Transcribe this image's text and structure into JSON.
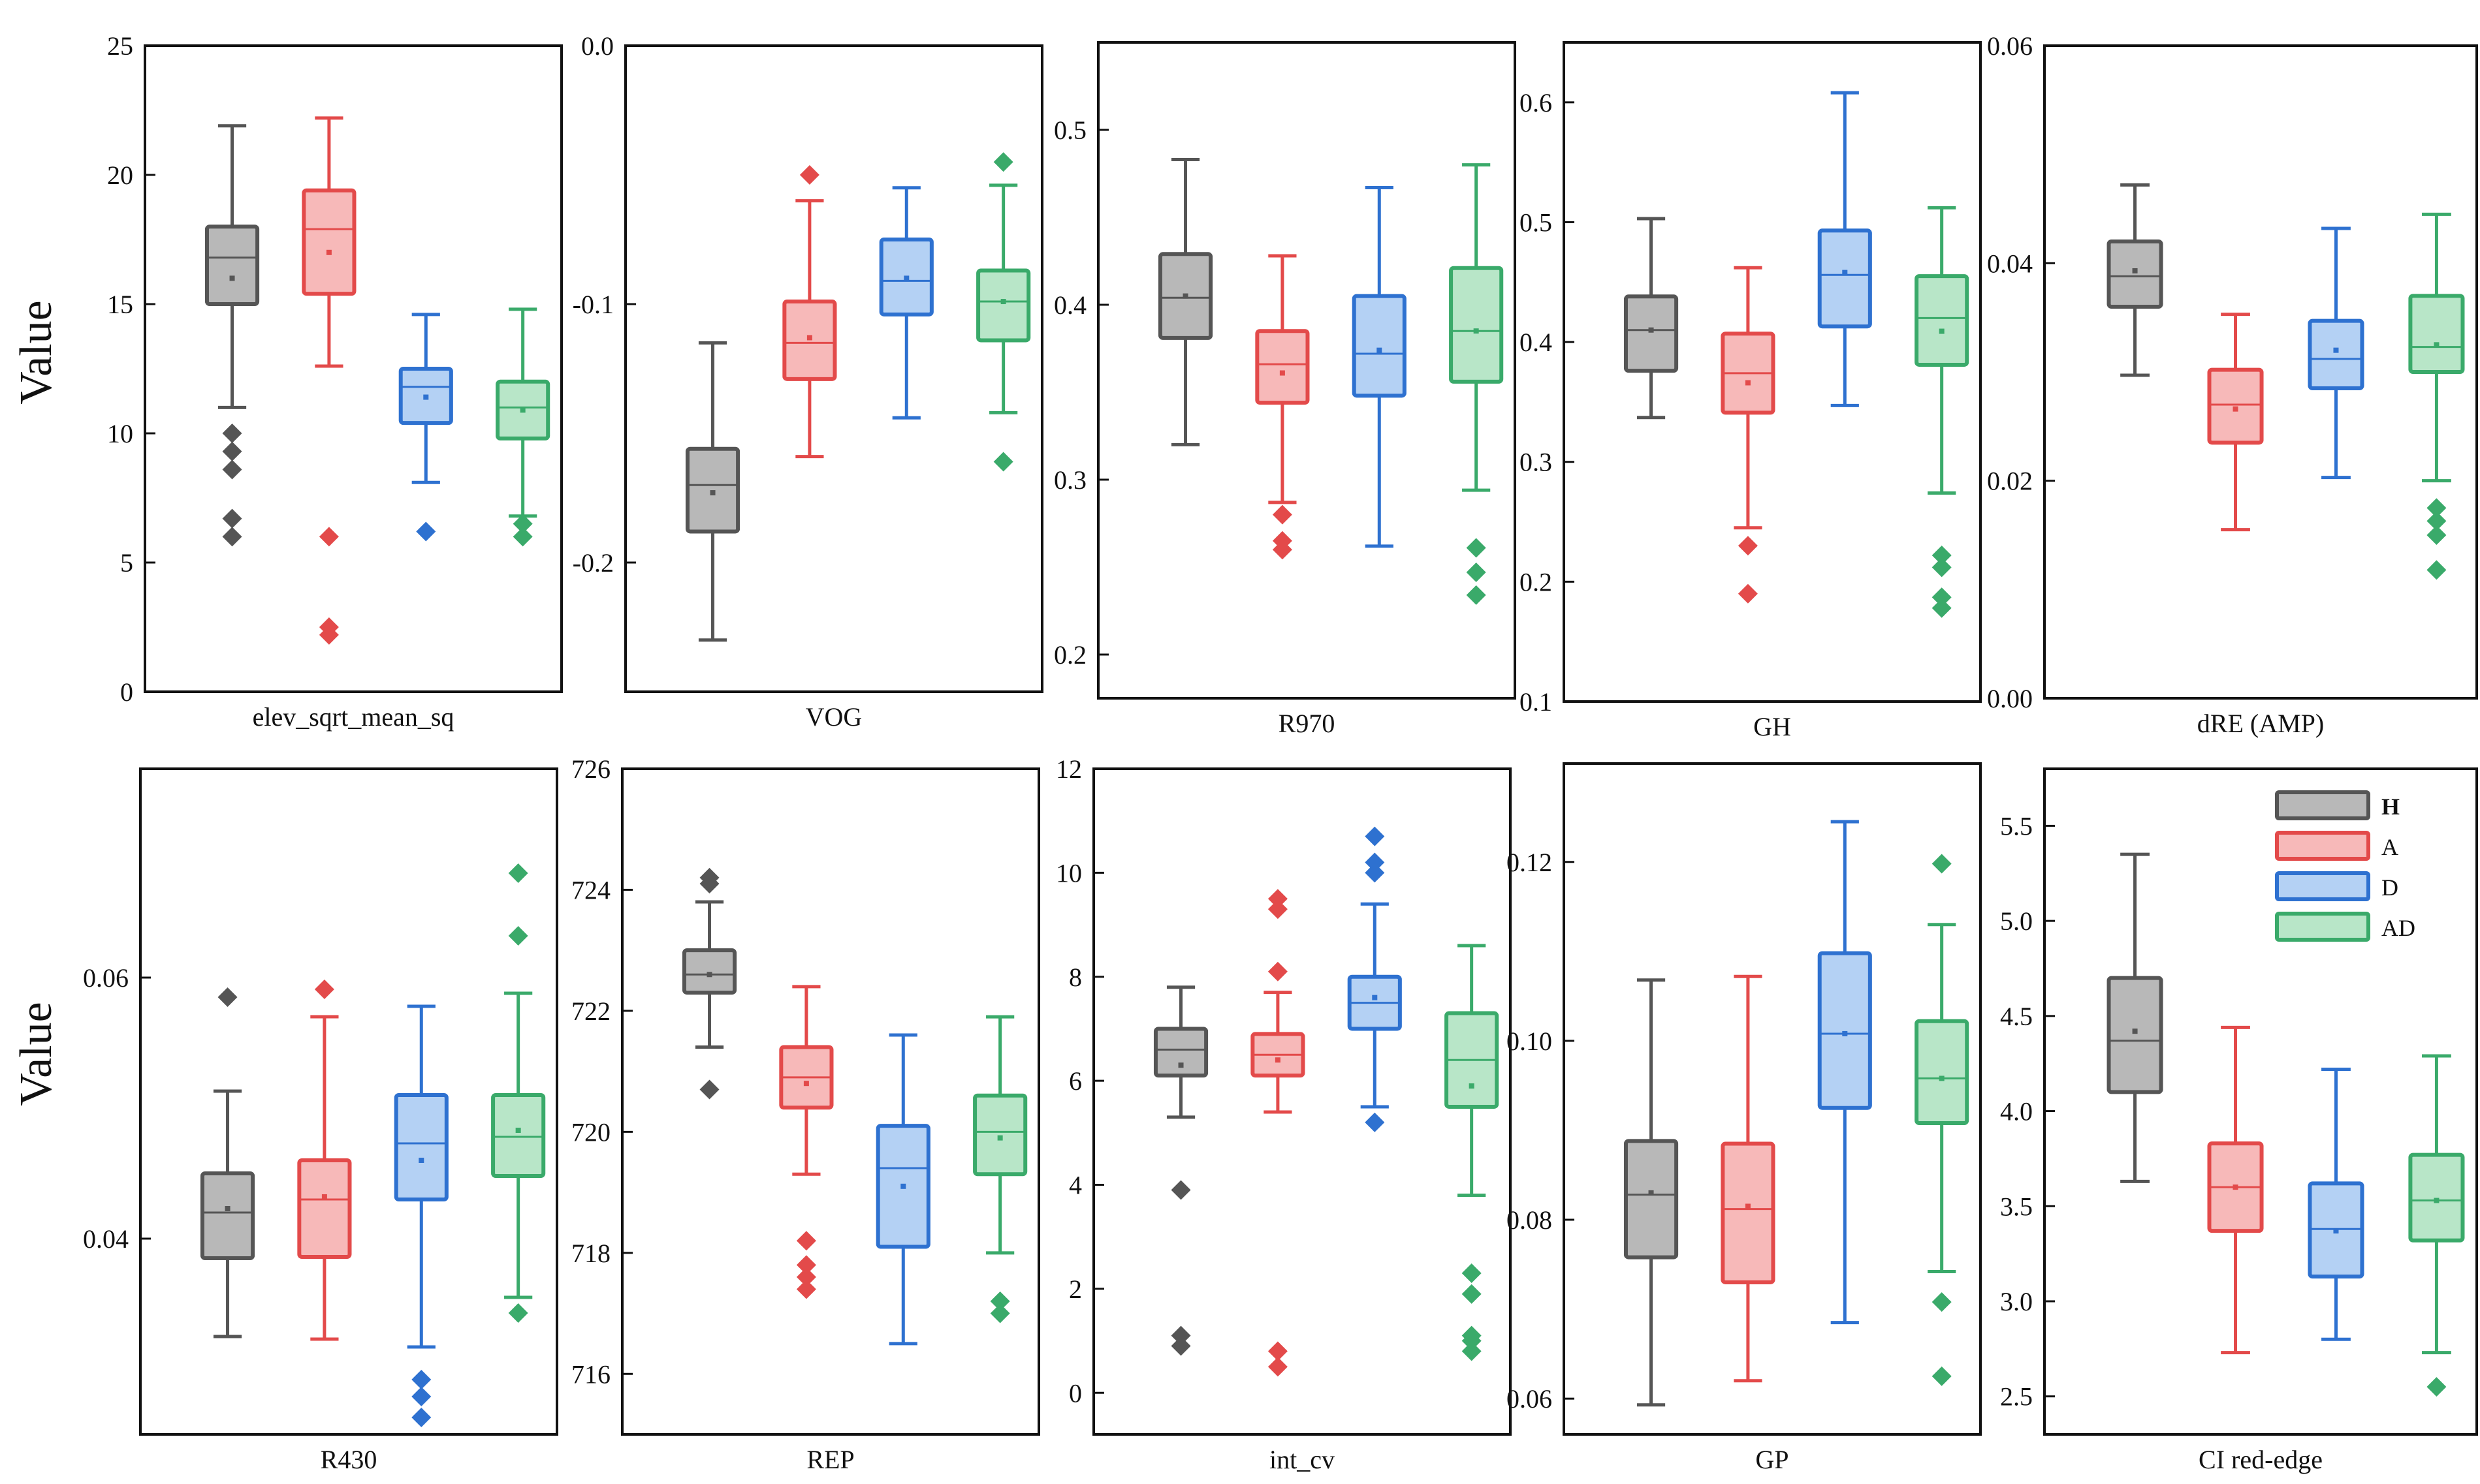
{
  "ylabel_top": "Value",
  "ylabel_bottom": "Value",
  "groups": [
    {
      "name": "H",
      "color": "#555555",
      "fill": "#b8b8b8"
    },
    {
      "name": "A",
      "color": "#e34a4a",
      "fill": "#f7b9b9"
    },
    {
      "name": "D",
      "color": "#2e71d0",
      "fill": "#b4d1f4"
    },
    {
      "name": "AD",
      "color": "#3aaa6a",
      "fill": "#b8e6c8"
    }
  ],
  "legend_position": "top-right of last panel",
  "chart_data": [
    {
      "type": "box",
      "title": "elev_sqrt_mean_sq",
      "ylim": [
        0,
        25
      ],
      "yticks": [
        0,
        5,
        10,
        15,
        20,
        25
      ],
      "series": [
        {
          "name": "H",
          "whisker_low": 11.0,
          "q1": 15.0,
          "median": 16.8,
          "q3": 18.0,
          "whisker_high": 21.9,
          "mean": 16.0,
          "outliers": [
            10.0,
            9.3,
            8.6,
            6.7,
            6.0
          ]
        },
        {
          "name": "A",
          "whisker_low": 12.6,
          "q1": 15.4,
          "median": 17.9,
          "q3": 19.4,
          "whisker_high": 22.2,
          "mean": 17.0,
          "outliers": [
            6.0,
            2.5,
            2.2
          ]
        },
        {
          "name": "D",
          "whisker_low": 8.1,
          "q1": 10.4,
          "median": 11.8,
          "q3": 12.5,
          "whisker_high": 14.6,
          "mean": 11.4,
          "outliers": [
            6.2
          ]
        },
        {
          "name": "AD",
          "whisker_low": 6.8,
          "q1": 9.8,
          "median": 11.0,
          "q3": 12.0,
          "whisker_high": 14.8,
          "mean": 10.9,
          "outliers": [
            6.5,
            6.0
          ]
        }
      ]
    },
    {
      "type": "box",
      "title": "VOG",
      "ylim": [
        -0.25,
        0.0
      ],
      "yticks": [
        -0.2,
        -0.1,
        0.0
      ],
      "series": [
        {
          "name": "H",
          "whisker_low": -0.23,
          "q1": -0.188,
          "median": -0.17,
          "q3": -0.156,
          "whisker_high": -0.115,
          "mean": -0.173,
          "outliers": []
        },
        {
          "name": "A",
          "whisker_low": -0.159,
          "q1": -0.129,
          "median": -0.115,
          "q3": -0.099,
          "whisker_high": -0.06,
          "mean": -0.113,
          "outliers": [
            -0.05
          ]
        },
        {
          "name": "D",
          "whisker_low": -0.144,
          "q1": -0.104,
          "median": -0.091,
          "q3": -0.075,
          "whisker_high": -0.055,
          "mean": -0.09,
          "outliers": []
        },
        {
          "name": "AD",
          "whisker_low": -0.142,
          "q1": -0.114,
          "median": -0.099,
          "q3": -0.087,
          "whisker_high": -0.054,
          "mean": -0.099,
          "outliers": [
            -0.045,
            -0.161
          ]
        }
      ]
    },
    {
      "type": "box",
      "title": "R970",
      "ylim": [
        0.175,
        0.55
      ],
      "yticks": [
        0.2,
        0.3,
        0.4,
        0.5
      ],
      "series": [
        {
          "name": "H",
          "whisker_low": 0.32,
          "q1": 0.381,
          "median": 0.404,
          "q3": 0.429,
          "whisker_high": 0.483,
          "mean": 0.405,
          "outliers": []
        },
        {
          "name": "A",
          "whisker_low": 0.287,
          "q1": 0.344,
          "median": 0.366,
          "q3": 0.385,
          "whisker_high": 0.428,
          "mean": 0.361,
          "outliers": [
            0.28,
            0.265,
            0.26
          ]
        },
        {
          "name": "D",
          "whisker_low": 0.262,
          "q1": 0.348,
          "median": 0.372,
          "q3": 0.405,
          "whisker_high": 0.467,
          "mean": 0.374,
          "outliers": []
        },
        {
          "name": "AD",
          "whisker_low": 0.294,
          "q1": 0.356,
          "median": 0.385,
          "q3": 0.421,
          "whisker_high": 0.48,
          "mean": 0.385,
          "outliers": [
            0.261,
            0.247,
            0.234
          ]
        }
      ]
    },
    {
      "type": "box",
      "title": "GH",
      "ylim": [
        0.1,
        0.65
      ],
      "yticks": [
        0.1,
        0.2,
        0.3,
        0.4,
        0.5,
        0.6
      ],
      "series": [
        {
          "name": "H",
          "whisker_low": 0.337,
          "q1": 0.376,
          "median": 0.41,
          "q3": 0.438,
          "whisker_high": 0.503,
          "mean": 0.41,
          "outliers": []
        },
        {
          "name": "A",
          "whisker_low": 0.245,
          "q1": 0.341,
          "median": 0.374,
          "q3": 0.407,
          "whisker_high": 0.462,
          "mean": 0.366,
          "outliers": [
            0.23,
            0.19
          ]
        },
        {
          "name": "D",
          "whisker_low": 0.347,
          "q1": 0.413,
          "median": 0.456,
          "q3": 0.493,
          "whisker_high": 0.608,
          "mean": 0.458,
          "outliers": []
        },
        {
          "name": "AD",
          "whisker_low": 0.274,
          "q1": 0.381,
          "median": 0.42,
          "q3": 0.455,
          "whisker_high": 0.512,
          "mean": 0.409,
          "outliers": [
            0.222,
            0.212,
            0.187,
            0.178
          ]
        }
      ]
    },
    {
      "type": "box",
      "title": "dRE (AMP)",
      "ylim": [
        0.0,
        0.06
      ],
      "yticks": [
        0.0,
        0.02,
        0.04,
        0.06
      ],
      "series": [
        {
          "name": "H",
          "whisker_low": 0.0297,
          "q1": 0.036,
          "median": 0.0388,
          "q3": 0.042,
          "whisker_high": 0.0472,
          "mean": 0.0393,
          "outliers": []
        },
        {
          "name": "A",
          "whisker_low": 0.0155,
          "q1": 0.0235,
          "median": 0.027,
          "q3": 0.0302,
          "whisker_high": 0.0353,
          "mean": 0.0266,
          "outliers": []
        },
        {
          "name": "D",
          "whisker_low": 0.0203,
          "q1": 0.0285,
          "median": 0.0312,
          "q3": 0.0347,
          "whisker_high": 0.0432,
          "mean": 0.032,
          "outliers": []
        },
        {
          "name": "AD",
          "whisker_low": 0.02,
          "q1": 0.03,
          "median": 0.0323,
          "q3": 0.037,
          "whisker_high": 0.0445,
          "mean": 0.0325,
          "outliers": [
            0.0175,
            0.0163,
            0.015,
            0.0118
          ]
        }
      ]
    },
    {
      "type": "box",
      "title": "R430",
      "ylim": [
        0.025,
        0.076
      ],
      "yticks": [
        0.04,
        0.06
      ],
      "series": [
        {
          "name": "H",
          "whisker_low": 0.0325,
          "q1": 0.0385,
          "median": 0.042,
          "q3": 0.045,
          "whisker_high": 0.0513,
          "mean": 0.0423,
          "outliers": [
            0.0585
          ]
        },
        {
          "name": "A",
          "whisker_low": 0.0323,
          "q1": 0.0386,
          "median": 0.043,
          "q3": 0.046,
          "whisker_high": 0.057,
          "mean": 0.0432,
          "outliers": [
            0.0591
          ]
        },
        {
          "name": "D",
          "whisker_low": 0.0317,
          "q1": 0.043,
          "median": 0.0473,
          "q3": 0.051,
          "whisker_high": 0.0578,
          "mean": 0.046,
          "outliers": [
            0.0292,
            0.0279,
            0.0263
          ]
        },
        {
          "name": "AD",
          "whisker_low": 0.0355,
          "q1": 0.0448,
          "median": 0.0478,
          "q3": 0.051,
          "whisker_high": 0.0588,
          "mean": 0.0483,
          "outliers": [
            0.068,
            0.0632,
            0.0343
          ]
        }
      ]
    },
    {
      "type": "box",
      "title": "REP",
      "ylim": [
        715,
        726
      ],
      "yticks": [
        716,
        718,
        720,
        722,
        724,
        726
      ],
      "series": [
        {
          "name": "H",
          "whisker_low": 721.4,
          "q1": 722.3,
          "median": 722.6,
          "q3": 723.0,
          "whisker_high": 723.8,
          "mean": 722.6,
          "outliers": [
            724.2,
            724.1,
            720.7
          ]
        },
        {
          "name": "A",
          "whisker_low": 719.3,
          "q1": 720.4,
          "median": 720.9,
          "q3": 721.4,
          "whisker_high": 722.4,
          "mean": 720.8,
          "outliers": [
            718.2,
            717.8,
            717.6,
            717.4
          ]
        },
        {
          "name": "D",
          "whisker_low": 716.5,
          "q1": 718.1,
          "median": 719.4,
          "q3": 720.1,
          "whisker_high": 721.6,
          "mean": 719.1,
          "outliers": []
        },
        {
          "name": "AD",
          "whisker_low": 718.0,
          "q1": 719.3,
          "median": 720.0,
          "q3": 720.6,
          "whisker_high": 721.9,
          "mean": 719.9,
          "outliers": [
            717.2,
            717.0
          ]
        }
      ]
    },
    {
      "type": "box",
      "title": "int_cv",
      "ylim": [
        -0.8,
        12
      ],
      "yticks": [
        0,
        2,
        4,
        6,
        8,
        10,
        12
      ],
      "series": [
        {
          "name": "H",
          "whisker_low": 5.3,
          "q1": 6.1,
          "median": 6.6,
          "q3": 7.0,
          "whisker_high": 7.8,
          "mean": 6.3,
          "outliers": [
            3.9,
            1.1,
            0.9
          ]
        },
        {
          "name": "A",
          "whisker_low": 5.4,
          "q1": 6.1,
          "median": 6.5,
          "q3": 6.9,
          "whisker_high": 7.7,
          "mean": 6.4,
          "outliers": [
            9.5,
            9.3,
            8.1,
            0.8,
            0.5
          ]
        },
        {
          "name": "D",
          "whisker_low": 5.5,
          "q1": 7.0,
          "median": 7.5,
          "q3": 8.0,
          "whisker_high": 9.4,
          "mean": 7.6,
          "outliers": [
            10.7,
            10.2,
            10.0,
            5.2
          ]
        },
        {
          "name": "AD",
          "whisker_low": 3.8,
          "q1": 5.5,
          "median": 6.4,
          "q3": 7.3,
          "whisker_high": 8.6,
          "mean": 5.9,
          "outliers": [
            2.3,
            1.9,
            1.1,
            1.0,
            0.8
          ]
        }
      ]
    },
    {
      "type": "box",
      "title": "GP",
      "ylim": [
        0.056,
        0.131
      ],
      "yticks": [
        0.06,
        0.08,
        0.1,
        0.12
      ],
      "series": [
        {
          "name": "H",
          "whisker_low": 0.0593,
          "q1": 0.0758,
          "median": 0.0828,
          "q3": 0.0888,
          "whisker_high": 0.1068,
          "mean": 0.083,
          "outliers": []
        },
        {
          "name": "A",
          "whisker_low": 0.062,
          "q1": 0.073,
          "median": 0.0812,
          "q3": 0.0885,
          "whisker_high": 0.1072,
          "mean": 0.0815,
          "outliers": []
        },
        {
          "name": "D",
          "whisker_low": 0.0685,
          "q1": 0.0925,
          "median": 0.1008,
          "q3": 0.1098,
          "whisker_high": 0.1245,
          "mean": 0.1008,
          "outliers": []
        },
        {
          "name": "AD",
          "whisker_low": 0.0742,
          "q1": 0.0908,
          "median": 0.0958,
          "q3": 0.1022,
          "whisker_high": 0.113,
          "mean": 0.0958,
          "outliers": [
            0.1198,
            0.0708,
            0.0625
          ]
        }
      ]
    },
    {
      "type": "box",
      "title": "CI red-edge",
      "ylim": [
        2.3,
        5.8
      ],
      "yticks": [
        2.5,
        3.0,
        3.5,
        4.0,
        4.5,
        5.0,
        5.5
      ],
      "series": [
        {
          "name": "H",
          "whisker_low": 3.63,
          "q1": 4.1,
          "median": 4.37,
          "q3": 4.7,
          "whisker_high": 5.35,
          "mean": 4.42,
          "outliers": []
        },
        {
          "name": "A",
          "whisker_low": 2.73,
          "q1": 3.37,
          "median": 3.6,
          "q3": 3.83,
          "whisker_high": 4.44,
          "mean": 3.6,
          "outliers": []
        },
        {
          "name": "D",
          "whisker_low": 2.8,
          "q1": 3.13,
          "median": 3.38,
          "q3": 3.62,
          "whisker_high": 4.22,
          "mean": 3.37,
          "outliers": []
        },
        {
          "name": "AD",
          "whisker_low": 2.73,
          "q1": 3.32,
          "median": 3.53,
          "q3": 3.77,
          "whisker_high": 4.29,
          "mean": 3.53,
          "outliers": [
            2.55
          ]
        }
      ]
    }
  ]
}
